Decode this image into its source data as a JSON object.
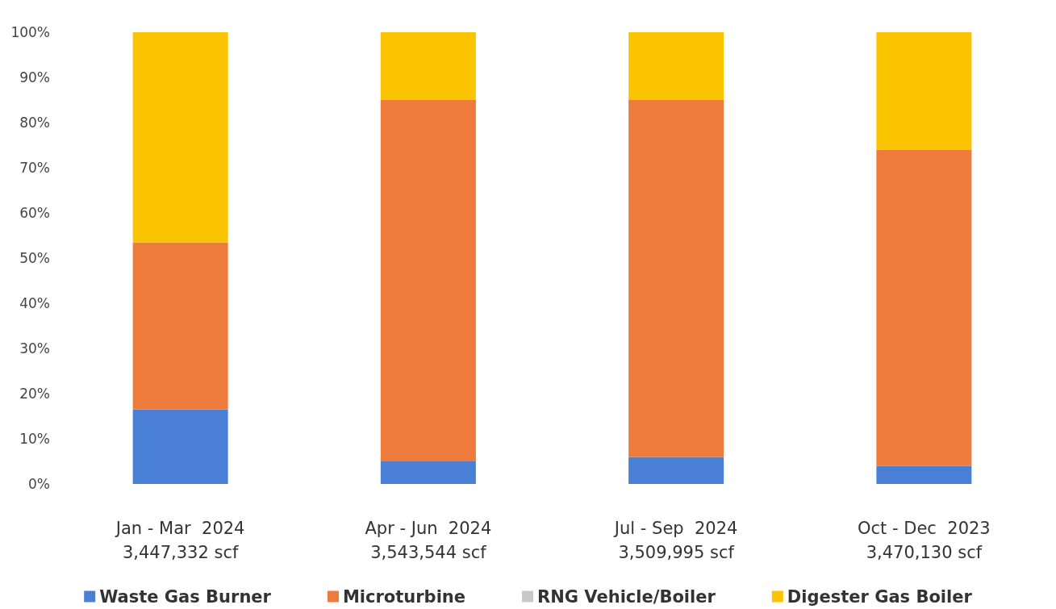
{
  "chart_data": {
    "type": "bar",
    "stacked": true,
    "categories": [
      "Jan - Mar  2024\n3,447,332 scf",
      "Apr - Jun  2024\n3,543,544 scf",
      "Jul - Sep  2024\n3,509,995 scf",
      "Oct - Dec  2023\n3,470,130 scf"
    ],
    "series": [
      {
        "name": "Waste Gas Burner",
        "color": "#4a7fd6",
        "values": [
          16.5,
          5,
          6,
          4
        ]
      },
      {
        "name": "Microturbine",
        "color": "#ee7a3c",
        "values": [
          37,
          80,
          79,
          70
        ]
      },
      {
        "name": "RNG Vehicle/Boiler",
        "color": "#c8c8c8",
        "values": [
          0,
          0,
          0,
          0
        ]
      },
      {
        "name": "Digester Gas Boiler",
        "color": "#fbc400",
        "values": [
          46.5,
          15,
          15,
          26
        ]
      }
    ],
    "ylim": [
      0,
      100
    ],
    "yticks": [
      {
        "value": 0,
        "label": "0%"
      },
      {
        "value": 10,
        "label": "10%"
      },
      {
        "value": 20,
        "label": "20%"
      },
      {
        "value": 30,
        "label": "30%"
      },
      {
        "value": 40,
        "label": "40%"
      },
      {
        "value": 50,
        "label": "50%"
      },
      {
        "value": 60,
        "label": "60%"
      },
      {
        "value": 70,
        "label": "70%"
      },
      {
        "value": 80,
        "label": "80%"
      },
      {
        "value": 90,
        "label": "90%"
      },
      {
        "value": 100,
        "label": "100%"
      }
    ],
    "grid": false,
    "legend": "bottom"
  }
}
